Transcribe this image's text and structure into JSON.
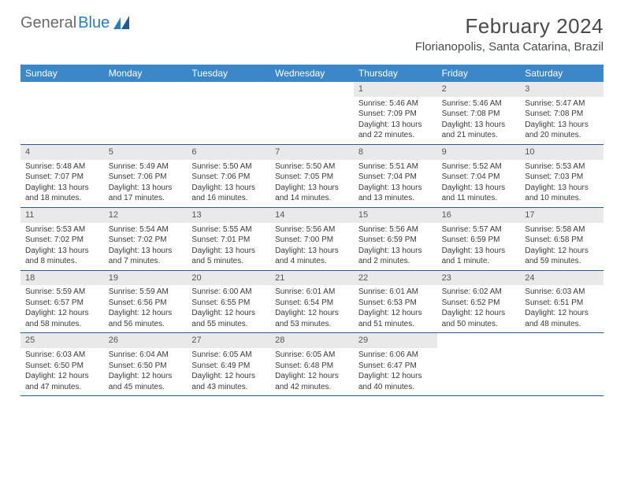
{
  "brand": {
    "part1": "General",
    "part2": "Blue"
  },
  "title": "February 2024",
  "location": "Florianopolis, Santa Catarina, Brazil",
  "columns": [
    "Sunday",
    "Monday",
    "Tuesday",
    "Wednesday",
    "Thursday",
    "Friday",
    "Saturday"
  ],
  "colors": {
    "header_bg": "#3b87c8",
    "header_text": "#ffffff",
    "daynum_bg": "#e9e9e9",
    "week_border": "#2a5d8f",
    "text": "#3a3a3a",
    "brand_gray": "#6b6b6b",
    "brand_blue": "#2b7bbf"
  },
  "typography": {
    "title_fontsize": 26,
    "location_fontsize": 15,
    "dayhead_fontsize": 12,
    "daynum_fontsize": 11,
    "cell_fontsize": 10
  },
  "weeks": [
    [
      null,
      null,
      null,
      null,
      {
        "n": "1",
        "sunrise": "5:46 AM",
        "sunset": "7:09 PM",
        "daylight": "13 hours and 22 minutes."
      },
      {
        "n": "2",
        "sunrise": "5:46 AM",
        "sunset": "7:08 PM",
        "daylight": "13 hours and 21 minutes."
      },
      {
        "n": "3",
        "sunrise": "5:47 AM",
        "sunset": "7:08 PM",
        "daylight": "13 hours and 20 minutes."
      }
    ],
    [
      {
        "n": "4",
        "sunrise": "5:48 AM",
        "sunset": "7:07 PM",
        "daylight": "13 hours and 18 minutes."
      },
      {
        "n": "5",
        "sunrise": "5:49 AM",
        "sunset": "7:06 PM",
        "daylight": "13 hours and 17 minutes."
      },
      {
        "n": "6",
        "sunrise": "5:50 AM",
        "sunset": "7:06 PM",
        "daylight": "13 hours and 16 minutes."
      },
      {
        "n": "7",
        "sunrise": "5:50 AM",
        "sunset": "7:05 PM",
        "daylight": "13 hours and 14 minutes."
      },
      {
        "n": "8",
        "sunrise": "5:51 AM",
        "sunset": "7:04 PM",
        "daylight": "13 hours and 13 minutes."
      },
      {
        "n": "9",
        "sunrise": "5:52 AM",
        "sunset": "7:04 PM",
        "daylight": "13 hours and 11 minutes."
      },
      {
        "n": "10",
        "sunrise": "5:53 AM",
        "sunset": "7:03 PM",
        "daylight": "13 hours and 10 minutes."
      }
    ],
    [
      {
        "n": "11",
        "sunrise": "5:53 AM",
        "sunset": "7:02 PM",
        "daylight": "13 hours and 8 minutes."
      },
      {
        "n": "12",
        "sunrise": "5:54 AM",
        "sunset": "7:02 PM",
        "daylight": "13 hours and 7 minutes."
      },
      {
        "n": "13",
        "sunrise": "5:55 AM",
        "sunset": "7:01 PM",
        "daylight": "13 hours and 5 minutes."
      },
      {
        "n": "14",
        "sunrise": "5:56 AM",
        "sunset": "7:00 PM",
        "daylight": "13 hours and 4 minutes."
      },
      {
        "n": "15",
        "sunrise": "5:56 AM",
        "sunset": "6:59 PM",
        "daylight": "13 hours and 2 minutes."
      },
      {
        "n": "16",
        "sunrise": "5:57 AM",
        "sunset": "6:59 PM",
        "daylight": "13 hours and 1 minute."
      },
      {
        "n": "17",
        "sunrise": "5:58 AM",
        "sunset": "6:58 PM",
        "daylight": "12 hours and 59 minutes."
      }
    ],
    [
      {
        "n": "18",
        "sunrise": "5:59 AM",
        "sunset": "6:57 PM",
        "daylight": "12 hours and 58 minutes."
      },
      {
        "n": "19",
        "sunrise": "5:59 AM",
        "sunset": "6:56 PM",
        "daylight": "12 hours and 56 minutes."
      },
      {
        "n": "20",
        "sunrise": "6:00 AM",
        "sunset": "6:55 PM",
        "daylight": "12 hours and 55 minutes."
      },
      {
        "n": "21",
        "sunrise": "6:01 AM",
        "sunset": "6:54 PM",
        "daylight": "12 hours and 53 minutes."
      },
      {
        "n": "22",
        "sunrise": "6:01 AM",
        "sunset": "6:53 PM",
        "daylight": "12 hours and 51 minutes."
      },
      {
        "n": "23",
        "sunrise": "6:02 AM",
        "sunset": "6:52 PM",
        "daylight": "12 hours and 50 minutes."
      },
      {
        "n": "24",
        "sunrise": "6:03 AM",
        "sunset": "6:51 PM",
        "daylight": "12 hours and 48 minutes."
      }
    ],
    [
      {
        "n": "25",
        "sunrise": "6:03 AM",
        "sunset": "6:50 PM",
        "daylight": "12 hours and 47 minutes."
      },
      {
        "n": "26",
        "sunrise": "6:04 AM",
        "sunset": "6:50 PM",
        "daylight": "12 hours and 45 minutes."
      },
      {
        "n": "27",
        "sunrise": "6:05 AM",
        "sunset": "6:49 PM",
        "daylight": "12 hours and 43 minutes."
      },
      {
        "n": "28",
        "sunrise": "6:05 AM",
        "sunset": "6:48 PM",
        "daylight": "12 hours and 42 minutes."
      },
      {
        "n": "29",
        "sunrise": "6:06 AM",
        "sunset": "6:47 PM",
        "daylight": "12 hours and 40 minutes."
      },
      null,
      null
    ]
  ],
  "labels": {
    "sunrise": "Sunrise: ",
    "sunset": "Sunset: ",
    "daylight": "Daylight: "
  }
}
